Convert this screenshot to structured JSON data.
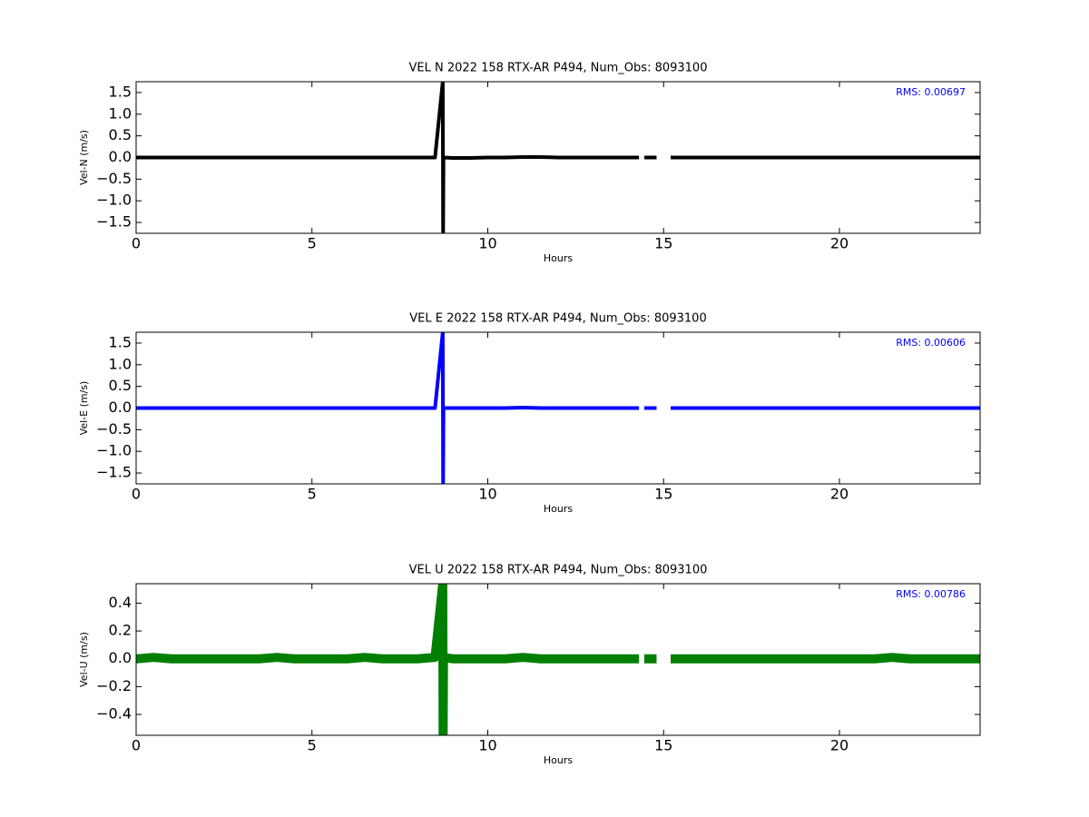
{
  "chart_data": [
    {
      "type": "line",
      "title": "VEL N 2022 158 RTX-AR  P494, Num_Obs: 8093100",
      "x_label": "Hours",
      "y_label": "Vel-N (m/s)",
      "annotation": "RMS:  0.00697",
      "xlim": [
        0,
        24
      ],
      "xticks": [
        0,
        5,
        10,
        15,
        20
      ],
      "ylim": [
        -1.75,
        1.75
      ],
      "yticks": [
        {
          "value": -1.5,
          "label": "−1.5"
        },
        {
          "value": -1.0,
          "label": "−1.0"
        },
        {
          "value": -0.5,
          "label": "−0.5"
        },
        {
          "value": 0,
          "label": "0.0"
        },
        0.5,
        {
          "value": 1,
          "label": "1.0"
        },
        1.5
      ],
      "x": [
        0,
        0.5,
        1,
        1.5,
        2,
        2.5,
        3,
        3.5,
        4,
        4.5,
        5,
        5.5,
        6,
        6.5,
        7,
        7.5,
        8,
        8.5,
        8.72,
        8.73,
        8.74,
        9,
        9.5,
        10,
        10.5,
        11,
        11.5,
        12,
        12.5,
        13,
        13.5,
        14,
        14.3,
        14.35,
        14.45,
        14.8,
        15,
        15.2,
        15.5,
        16,
        16.5,
        17,
        17.5,
        18,
        18.5,
        19,
        19.5,
        20,
        20.5,
        21,
        21.5,
        22,
        22.5,
        23,
        23.5,
        24
      ],
      "series": [
        {
          "name": "Vel-N",
          "color": "#000000",
          "values": [
            0,
            0,
            0,
            0,
            0,
            0,
            0,
            0,
            0,
            0,
            0,
            0,
            0,
            0,
            0,
            0,
            0,
            0,
            1.75,
            -1.75,
            0,
            -0.01,
            -0.01,
            0,
            0,
            0.01,
            0.01,
            0,
            0,
            0,
            0,
            0,
            0,
            null,
            0,
            0,
            null,
            0,
            0,
            0,
            0,
            0,
            0,
            0,
            0,
            0,
            0,
            0,
            0,
            0,
            0,
            0,
            0,
            0,
            0,
            0
          ]
        }
      ]
    },
    {
      "type": "line",
      "title": "VEL E 2022 158 RTX-AR  P494, Num_Obs: 8093100",
      "x_label": "Hours",
      "y_label": "Vel-E (m/s)",
      "annotation": "RMS:  0.00606",
      "xlim": [
        0,
        24
      ],
      "xticks": [
        0,
        5,
        10,
        15,
        20
      ],
      "ylim": [
        -1.75,
        1.75
      ],
      "yticks": [
        {
          "value": -1.5,
          "label": "−1.5"
        },
        {
          "value": -1.0,
          "label": "−1.0"
        },
        {
          "value": -0.5,
          "label": "−0.5"
        },
        {
          "value": 0,
          "label": "0.0"
        },
        0.5,
        {
          "value": 1,
          "label": "1.0"
        },
        1.5
      ],
      "x": [
        0,
        0.5,
        1,
        1.5,
        2,
        2.5,
        3,
        3.5,
        4,
        4.5,
        5,
        5.5,
        6,
        6.5,
        7,
        7.5,
        8,
        8.5,
        8.72,
        8.73,
        8.74,
        9,
        9.5,
        10,
        10.5,
        11,
        11.5,
        12,
        12.5,
        13,
        13.5,
        14,
        14.3,
        14.35,
        14.45,
        14.8,
        15,
        15.2,
        15.5,
        16,
        16.5,
        17,
        17.5,
        18,
        18.5,
        19,
        19.5,
        20,
        20.5,
        21,
        21.5,
        22,
        22.5,
        23,
        23.5,
        24
      ],
      "series": [
        {
          "name": "Vel-E",
          "color": "#0000ff",
          "values": [
            0,
            0,
            0,
            0,
            0,
            0,
            0,
            0,
            0,
            0,
            0,
            0,
            0,
            0,
            0,
            0,
            0,
            0,
            1.75,
            -1.75,
            0,
            0,
            0,
            0,
            0,
            0.01,
            0,
            0,
            0,
            0,
            0,
            0,
            0,
            null,
            0,
            0,
            null,
            0,
            0,
            0,
            0,
            0,
            0,
            0,
            0,
            0,
            0,
            0,
            0,
            0,
            0,
            0,
            0,
            0,
            0,
            0
          ]
        }
      ]
    },
    {
      "type": "line",
      "title": "VEL U 2022 158 RTX-AR  P494, Num_Obs: 8093100",
      "x_label": "Hours",
      "y_label": "Vel-U (m/s)",
      "annotation": "RMS:  0.00786",
      "xlim": [
        0,
        24
      ],
      "xticks": [
        0,
        5,
        10,
        15,
        20
      ],
      "ylim": [
        -0.55,
        0.54
      ],
      "yticks": [
        {
          "value": -0.4,
          "label": "−0.4"
        },
        {
          "value": -0.2,
          "label": "−0.2"
        },
        {
          "value": 0,
          "label": "0.0"
        },
        0.2,
        0.4
      ],
      "x": [
        0,
        0.5,
        1,
        1.5,
        2,
        2.5,
        3,
        3.5,
        4,
        4.5,
        5,
        5.5,
        6,
        6.5,
        7,
        7.5,
        8,
        8.5,
        8.72,
        8.73,
        8.74,
        9,
        9.5,
        10,
        10.5,
        11,
        11.5,
        12,
        12.5,
        13,
        13.5,
        14,
        14.3,
        14.35,
        14.45,
        14.8,
        15,
        15.2,
        15.5,
        16,
        16.5,
        17,
        17.5,
        18,
        18.5,
        19,
        19.5,
        20,
        20.5,
        21,
        21.5,
        22,
        22.5,
        23,
        23.5,
        24
      ],
      "series": [
        {
          "name": "Vel-U",
          "color": "#007f00",
          "values": [
            0,
            0.01,
            0,
            0,
            0,
            0,
            0,
            0,
            0.01,
            0,
            0,
            0,
            0,
            0.01,
            0,
            0,
            0,
            0.01,
            0.54,
            -0.55,
            0.01,
            0,
            0,
            0,
            0,
            0.01,
            0,
            0,
            0,
            0,
            0,
            0,
            0,
            null,
            0,
            0,
            null,
            0,
            0,
            0,
            0,
            0,
            0,
            0,
            0,
            0,
            0,
            0,
            0,
            0,
            0.01,
            0,
            0,
            0,
            0,
            0
          ]
        }
      ]
    }
  ]
}
